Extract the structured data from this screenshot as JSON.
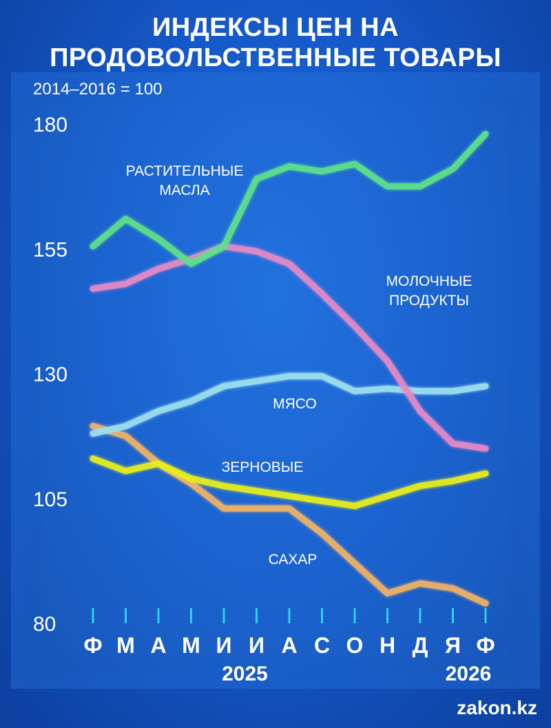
{
  "title_line1": "ИНДЕКСЫ ЦЕН НА",
  "title_line2": "ПРОДОВОЛЬСТВЕННЫЕ ТОВАРЫ",
  "subtitle": "2014–2016 = 100",
  "brand": "zakon.kz",
  "colors": {
    "gridline": "#2fd0f0",
    "vegetable_oils": "#5fe08a",
    "dairy": "#e58ac6",
    "meat": "#9ee0ee",
    "cereals": "#e8ef1a",
    "sugar": "#f0b266"
  },
  "chart_data": {
    "type": "line",
    "categories": [
      "Ф",
      "М",
      "А",
      "М",
      "И",
      "И",
      "А",
      "С",
      "О",
      "Н",
      "Д",
      "Я",
      "Ф"
    ],
    "year_labels": [
      {
        "label": "2025",
        "at_index": 5
      },
      {
        "label": "2026",
        "at_index": 12
      }
    ],
    "ylim": [
      80,
      180
    ],
    "yticks": [
      80,
      105,
      130,
      155,
      180
    ],
    "gridlines": [
      105,
      130,
      155,
      180
    ],
    "series": [
      {
        "name": "РАСТИТЕЛЬНЫЕ МАСЛА",
        "label_lines": [
          "РАСТИТЕЛЬНЫЕ",
          "МАСЛА"
        ],
        "color_key": "vegetable_oils",
        "values": [
          155.5,
          161,
          157,
          152,
          155.5,
          169,
          171.5,
          170.5,
          172,
          167.5,
          167.5,
          171,
          178
        ]
      },
      {
        "name": "МОЛОЧНЫЕ ПРОДУКТЫ",
        "label_lines": [
          "МОЛОЧНЫЕ",
          "ПРОДУКТЫ"
        ],
        "color_key": "dairy",
        "values": [
          147,
          148,
          151,
          153,
          155.5,
          154.5,
          152,
          146,
          139.5,
          132.5,
          122.5,
          116,
          115
        ]
      },
      {
        "name": "МЯСО",
        "label_lines": [
          "МЯСО"
        ],
        "color_key": "meat",
        "values": [
          118,
          119.5,
          122.5,
          124.5,
          127.5,
          128.5,
          129.5,
          129.5,
          126.5,
          127,
          126.5,
          126.5,
          127.5
        ]
      },
      {
        "name": "ЗЕРНОВЫЕ",
        "label_lines": [
          "ЗЕРНОВЫЕ"
        ],
        "color_key": "cereals",
        "values": [
          113,
          110.5,
          112,
          109,
          107.5,
          106.5,
          105.5,
          104.5,
          103.5,
          105.5,
          107.5,
          108.5,
          110
        ]
      },
      {
        "name": "САХАР",
        "label_lines": [
          "САХАР"
        ],
        "color_key": "sugar",
        "values": [
          119.5,
          117.5,
          112,
          108,
          103,
          103,
          103,
          98,
          92,
          86,
          88,
          87,
          84
        ]
      }
    ]
  }
}
